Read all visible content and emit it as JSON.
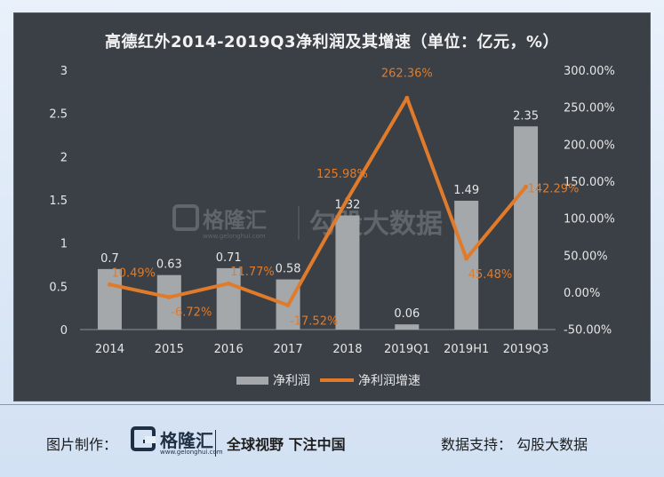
{
  "page": {
    "credit_label": "图片制作：",
    "logo_text": "格隆汇",
    "logo_url": "www.gelonghui.com",
    "slogan": "全球视野 下注中国",
    "source": "数据支持：  勾股大数据"
  },
  "watermark": {
    "logo_text": "格隆汇",
    "logo_url": "www.gelonghui.com",
    "partner_text": "勾股大数据"
  },
  "colors": {
    "bar": "#a5a8ab",
    "line": "#e07b2b",
    "panel": "#3b4046",
    "axis_text": "#e6e6e6"
  },
  "chart_data": {
    "type": "bar",
    "title": "高德红外2014-2019Q3净利润及其增速（单位：亿元，%）",
    "categories": [
      "2014",
      "2015",
      "2016",
      "2017",
      "2018",
      "2019Q1",
      "2019H1",
      "2019Q3"
    ],
    "series": [
      {
        "name": "净利润",
        "type": "bar",
        "axis": "left",
        "values": [
          0.7,
          0.63,
          0.71,
          0.58,
          1.32,
          0.06,
          1.49,
          2.35
        ],
        "labels": [
          "0.7",
          "0.63",
          "0.71",
          "0.58",
          "1.32",
          "0.06",
          "1.49",
          "2.35"
        ]
      },
      {
        "name": "净利润增速",
        "type": "line",
        "axis": "right",
        "values": [
          10.49,
          -6.72,
          11.77,
          -17.52,
          125.98,
          262.36,
          45.48,
          142.29
        ],
        "labels": [
          "10.49%",
          "-6.72%",
          "11.77%",
          "-17.52%",
          "125.98%",
          "262.36%",
          "45.48%",
          "142.29%"
        ]
      }
    ],
    "y_left": {
      "min": 0,
      "max": 3,
      "ticks": [
        "0",
        "0.5",
        "1",
        "1.5",
        "2",
        "2.5",
        "3"
      ]
    },
    "y_right": {
      "min": -50,
      "max": 300,
      "ticks": [
        "-50.00%",
        "0.00%",
        "50.00%",
        "100.00%",
        "150.00%",
        "200.00%",
        "250.00%",
        "300.00%"
      ]
    },
    "legend_position": "bottom",
    "grid": false
  }
}
